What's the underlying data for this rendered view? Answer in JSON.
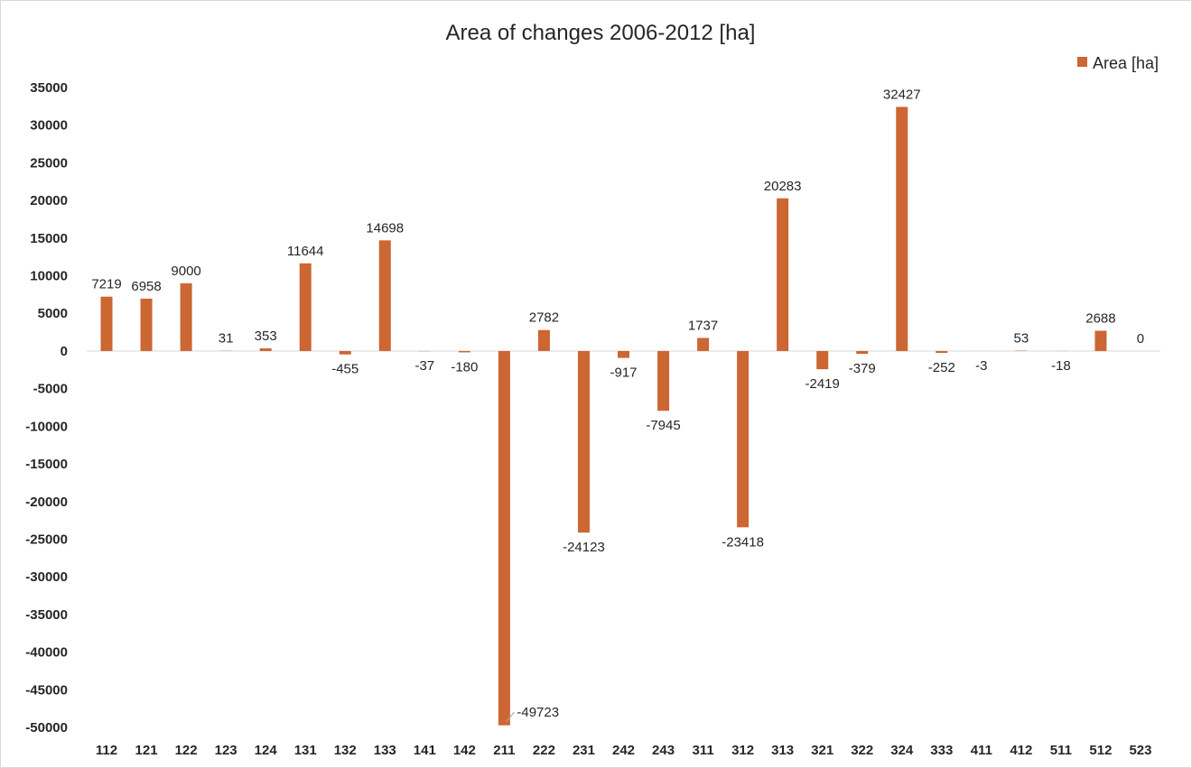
{
  "chart_data": {
    "type": "bar",
    "title": "Area  of changes 2006-2012 [ha]",
    "xlabel": "",
    "ylabel": "",
    "ylim": [
      -50000,
      35000
    ],
    "ytick_step": 5000,
    "yticks": [
      "35000",
      "30000",
      "25000",
      "20000",
      "15000",
      "10000",
      "5000",
      "0",
      "-5000",
      "-10000",
      "-15000",
      "-20000",
      "-25000",
      "-30000",
      "-35000",
      "-40000",
      "-45000",
      "-50000"
    ],
    "categories": [
      "112",
      "121",
      "122",
      "123",
      "124",
      "131",
      "132",
      "133",
      "141",
      "142",
      "211",
      "222",
      "231",
      "242",
      "243",
      "311",
      "312",
      "313",
      "321",
      "322",
      "324",
      "333",
      "411",
      "412",
      "511",
      "512",
      "523"
    ],
    "series": [
      {
        "name": "Area [ha]",
        "color": "#CC6633",
        "values": [
          7219,
          6958,
          9000,
          31,
          353,
          11644,
          -455,
          14698,
          -37,
          -180,
          -49723,
          2782,
          -24123,
          -917,
          -7945,
          1737,
          -23418,
          20283,
          -2419,
          -379,
          32427,
          -252,
          -3,
          53,
          -18,
          2688,
          0
        ]
      }
    ],
    "data_labels": [
      "7219",
      "6958",
      "9000",
      "31",
      "353",
      "11644",
      "-455",
      "14698",
      "-37",
      "-180",
      "-49723",
      "2782",
      "-24123",
      "-917",
      "-7945",
      "1737",
      "-23418",
      "20283",
      "-2419",
      "-379",
      "32427",
      "-252",
      "-3",
      "53",
      "-18",
      "2688",
      "0"
    ],
    "legend": {
      "position": "top-right",
      "entries": [
        "Area [ha]"
      ]
    },
    "grid": false
  }
}
